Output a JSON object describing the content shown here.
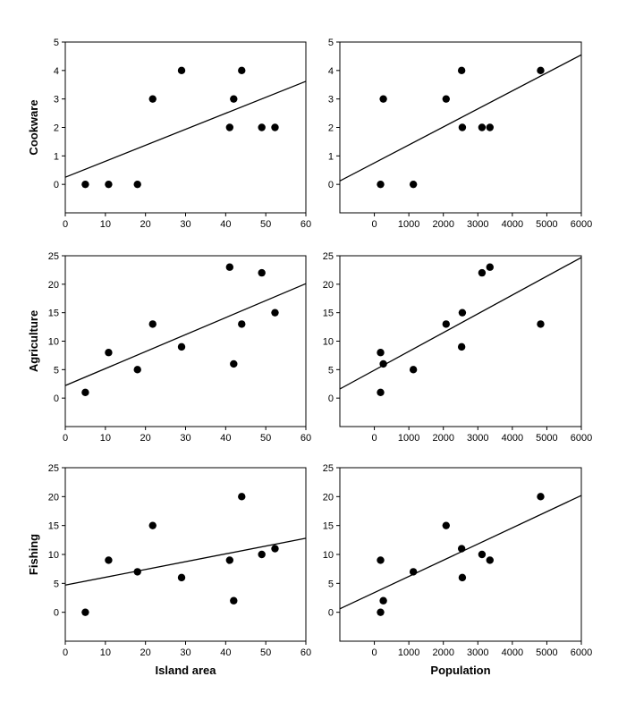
{
  "chart_data": [
    {
      "type": "scatter",
      "id": "cookware-area",
      "xlabel": "",
      "ylabel": "Cookware",
      "xlim": [
        0,
        60
      ],
      "ylim": [
        -1,
        5
      ],
      "xticks": [
        0,
        10,
        20,
        30,
        40,
        50,
        60
      ],
      "yticks": [
        0,
        1,
        2,
        3,
        4,
        5
      ],
      "points": [
        [
          5,
          0
        ],
        [
          10.8,
          0
        ],
        [
          18,
          0
        ],
        [
          21.8,
          3
        ],
        [
          29,
          4
        ],
        [
          41,
          2
        ],
        [
          42,
          3
        ],
        [
          44,
          4
        ],
        [
          49,
          2
        ],
        [
          52.3,
          2
        ]
      ],
      "fit": {
        "x": [
          0,
          60
        ],
        "y": [
          0.25,
          3.62
        ]
      }
    },
    {
      "type": "scatter",
      "id": "cookware-population",
      "xlabel": "",
      "ylabel": "",
      "xlim": [
        -1000,
        6000
      ],
      "ylim": [
        -1,
        5
      ],
      "xticks": [
        0,
        1000,
        2000,
        3000,
        4000,
        5000,
        6000
      ],
      "yticks": [
        0,
        1,
        2,
        3,
        4,
        5
      ],
      "points": [
        [
          180,
          0
        ],
        [
          260,
          3
        ],
        [
          1130,
          0
        ],
        [
          2080,
          3
        ],
        [
          2530,
          4
        ],
        [
          2550,
          2
        ],
        [
          3120,
          2
        ],
        [
          3350,
          2
        ],
        [
          4820,
          4
        ]
      ],
      "fit": {
        "x": [
          -1000,
          6000
        ],
        "y": [
          0.12,
          4.55
        ]
      }
    },
    {
      "type": "scatter",
      "id": "agriculture-area",
      "xlabel": "",
      "ylabel": "Agriculture",
      "xlim": [
        0,
        60
      ],
      "ylim": [
        -5,
        25
      ],
      "xticks": [
        0,
        10,
        20,
        30,
        40,
        50,
        60
      ],
      "yticks": [
        0,
        5,
        10,
        15,
        20,
        25
      ],
      "points": [
        [
          5,
          1
        ],
        [
          10.8,
          8
        ],
        [
          18,
          5
        ],
        [
          21.8,
          13
        ],
        [
          29,
          9
        ],
        [
          41,
          23
        ],
        [
          42,
          6
        ],
        [
          44,
          13
        ],
        [
          49,
          22
        ],
        [
          52.3,
          15
        ]
      ],
      "fit": {
        "x": [
          0,
          60
        ],
        "y": [
          2.2,
          20.1
        ]
      }
    },
    {
      "type": "scatter",
      "id": "agriculture-population",
      "xlabel": "",
      "ylabel": "",
      "xlim": [
        -1000,
        6000
      ],
      "ylim": [
        -5,
        25
      ],
      "xticks": [
        0,
        1000,
        2000,
        3000,
        4000,
        5000,
        6000
      ],
      "yticks": [
        0,
        5,
        10,
        15,
        20,
        25
      ],
      "points": [
        [
          180,
          8
        ],
        [
          180,
          1
        ],
        [
          260,
          6
        ],
        [
          1130,
          5
        ],
        [
          2080,
          13
        ],
        [
          2530,
          9
        ],
        [
          2550,
          15
        ],
        [
          3120,
          22
        ],
        [
          3350,
          23
        ],
        [
          4820,
          13
        ]
      ],
      "fit": {
        "x": [
          -1000,
          6000
        ],
        "y": [
          1.6,
          24.7
        ]
      }
    },
    {
      "type": "scatter",
      "id": "fishing-area",
      "xlabel": "Island area",
      "ylabel": "Fishing",
      "xlim": [
        0,
        60
      ],
      "ylim": [
        -5,
        25
      ],
      "xticks": [
        0,
        10,
        20,
        30,
        40,
        50,
        60
      ],
      "yticks": [
        0,
        5,
        10,
        15,
        20,
        25
      ],
      "points": [
        [
          5,
          0
        ],
        [
          10.8,
          9
        ],
        [
          18,
          7
        ],
        [
          21.8,
          15
        ],
        [
          29,
          6
        ],
        [
          41,
          9
        ],
        [
          42,
          2
        ],
        [
          44,
          20
        ],
        [
          49,
          10
        ],
        [
          52.3,
          11
        ]
      ],
      "fit": {
        "x": [
          0,
          60
        ],
        "y": [
          4.7,
          12.8
        ]
      }
    },
    {
      "type": "scatter",
      "id": "fishing-population",
      "xlabel": "Population",
      "ylabel": "",
      "xlim": [
        -1000,
        6000
      ],
      "ylim": [
        -5,
        25
      ],
      "xticks": [
        0,
        1000,
        2000,
        3000,
        4000,
        5000,
        6000
      ],
      "yticks": [
        0,
        5,
        10,
        15,
        20,
        25
      ],
      "points": [
        [
          180,
          9
        ],
        [
          180,
          0
        ],
        [
          260,
          2
        ],
        [
          1130,
          7
        ],
        [
          2080,
          15
        ],
        [
          2530,
          11
        ],
        [
          2550,
          6
        ],
        [
          3120,
          10
        ],
        [
          3350,
          9
        ],
        [
          4820,
          20
        ]
      ],
      "fit": {
        "x": [
          -1000,
          6000
        ],
        "y": [
          0.6,
          20.2
        ]
      }
    }
  ]
}
